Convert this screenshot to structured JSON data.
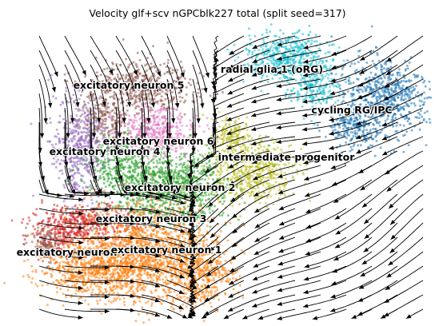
{
  "title": "Velocity glf+scv nGPCblk227 total (split seed=317)",
  "chart_data": {
    "type": "scatter",
    "title": "Velocity glf+scv nGPCblk227 total (split seed=317)",
    "xlabel": "",
    "ylabel": "",
    "axes_visible": false,
    "grid": false,
    "legend": "on data",
    "overlay": "velocity streamlines with arrowheads",
    "clusters": [
      {
        "name": "radial glia 1 (oRG)",
        "color": "#17becf"
      },
      {
        "name": "cycling RG/IPC",
        "color": "#1f77b4"
      },
      {
        "name": "intermediate progenitor",
        "color": "#bcbd22"
      },
      {
        "name": "excitatory neuron 5",
        "color": "#8c564b"
      },
      {
        "name": "excitatory neuron 6",
        "color": "#e377c2"
      },
      {
        "name": "excitatory neuron 4",
        "color": "#9467bd"
      },
      {
        "name": "excitatory neuron 2",
        "color": "#2ca02c"
      },
      {
        "name": "excitatory neuron 3",
        "color": "#d62728"
      },
      {
        "name": "excitatory neuron 7",
        "color": "#8c564b"
      },
      {
        "name": "excitatory neuron 1",
        "color": "#ff7f0e"
      }
    ]
  }
}
